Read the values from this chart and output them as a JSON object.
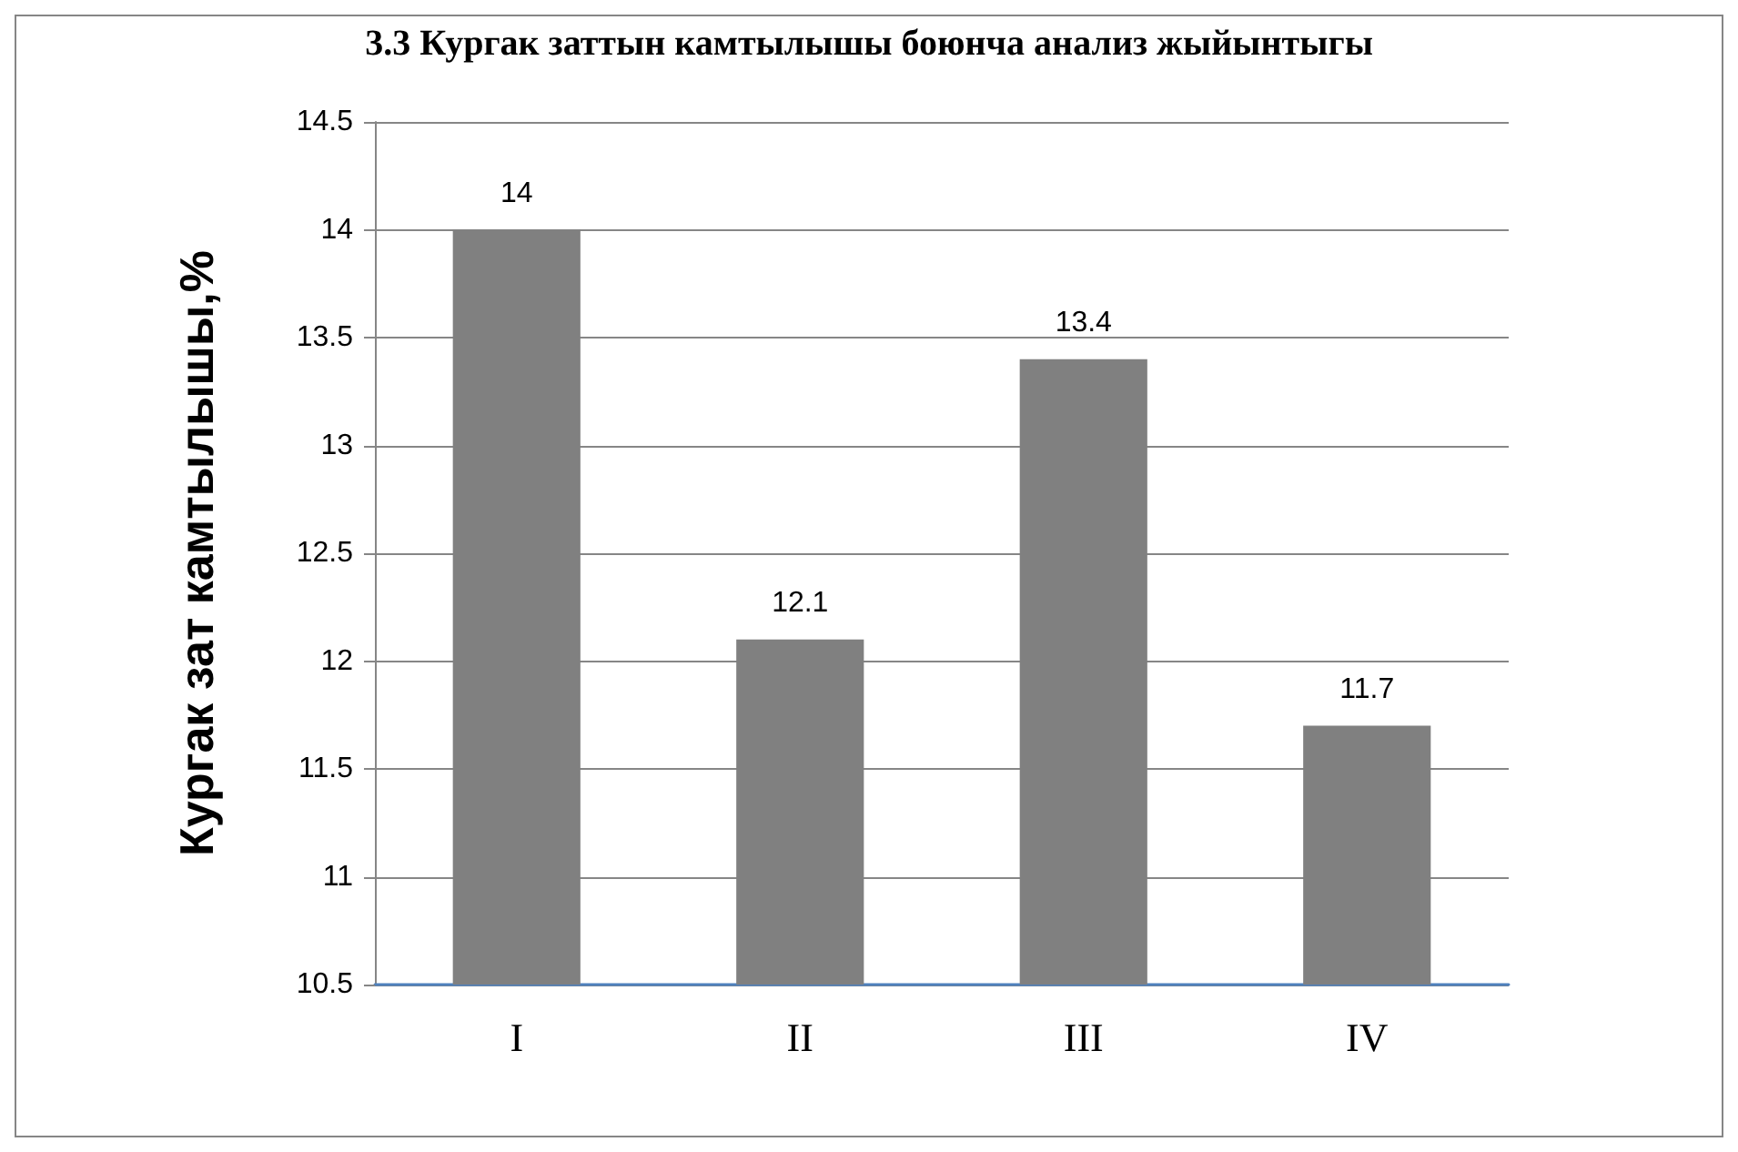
{
  "chart_data": {
    "type": "bar",
    "title": "3.3 Кургак заттын камтылышы боюнча анализ жыйынтыгы",
    "ylabel": "Кургак зат камтылышы,%",
    "categories": [
      "I",
      "II",
      "III",
      "IV"
    ],
    "values": [
      14,
      12.1,
      13.4,
      11.7
    ],
    "color": "#808080",
    "ylim": [
      10.5,
      14.5
    ],
    "yticks": [
      10.5,
      11,
      11.5,
      12,
      12.5,
      13,
      13.5,
      14,
      14.5
    ],
    "grid": "y",
    "data_labels": true
  }
}
